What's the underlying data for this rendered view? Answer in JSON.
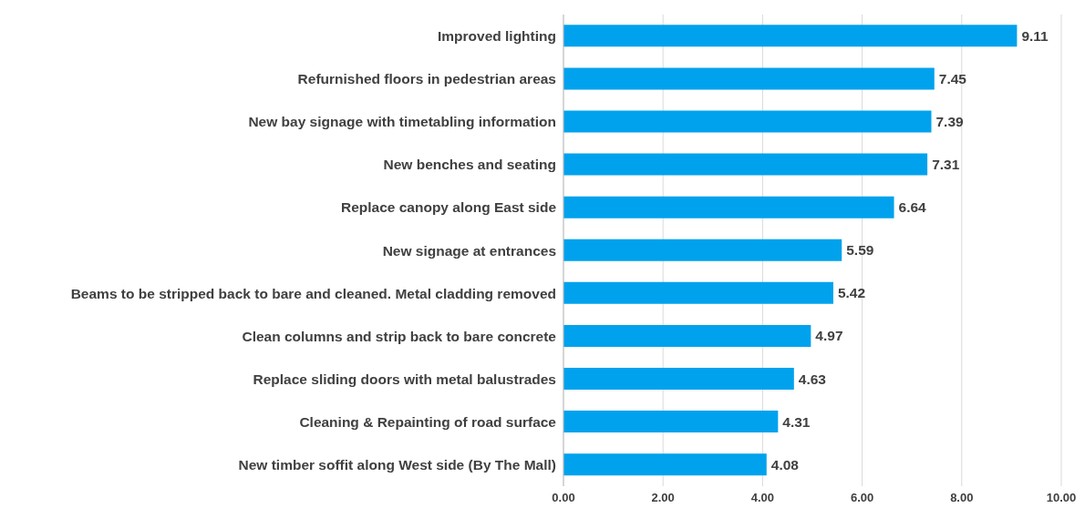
{
  "chart_data": {
    "type": "bar",
    "orientation": "horizontal",
    "categories": [
      "Improved lighting",
      "Refurnished floors in pedestrian areas",
      "New bay signage with timetabling information",
      "New benches and seating",
      "Replace canopy along East side",
      "New signage at entrances",
      "Beams to be stripped back to bare and cleaned. Metal cladding removed",
      "Clean columns and strip back to bare concrete",
      "Replace sliding doors with metal balustrades",
      "Cleaning & Repainting of road surface",
      "New timber soffit along West side (By The Mall)"
    ],
    "values": [
      9.11,
      7.45,
      7.39,
      7.31,
      6.64,
      5.59,
      5.42,
      4.97,
      4.63,
      4.31,
      4.08
    ],
    "color": "#00a2ed",
    "xlim": [
      0,
      10
    ],
    "xticks": [
      {
        "value": 0,
        "label": "0.00"
      },
      {
        "value": 2,
        "label": "2.00"
      },
      {
        "value": 4,
        "label": "4.00"
      },
      {
        "value": 6,
        "label": "6.00"
      },
      {
        "value": 8,
        "label": "8.00"
      },
      {
        "value": 10,
        "label": "10.00"
      }
    ],
    "grid": "x",
    "data_labels": true
  }
}
